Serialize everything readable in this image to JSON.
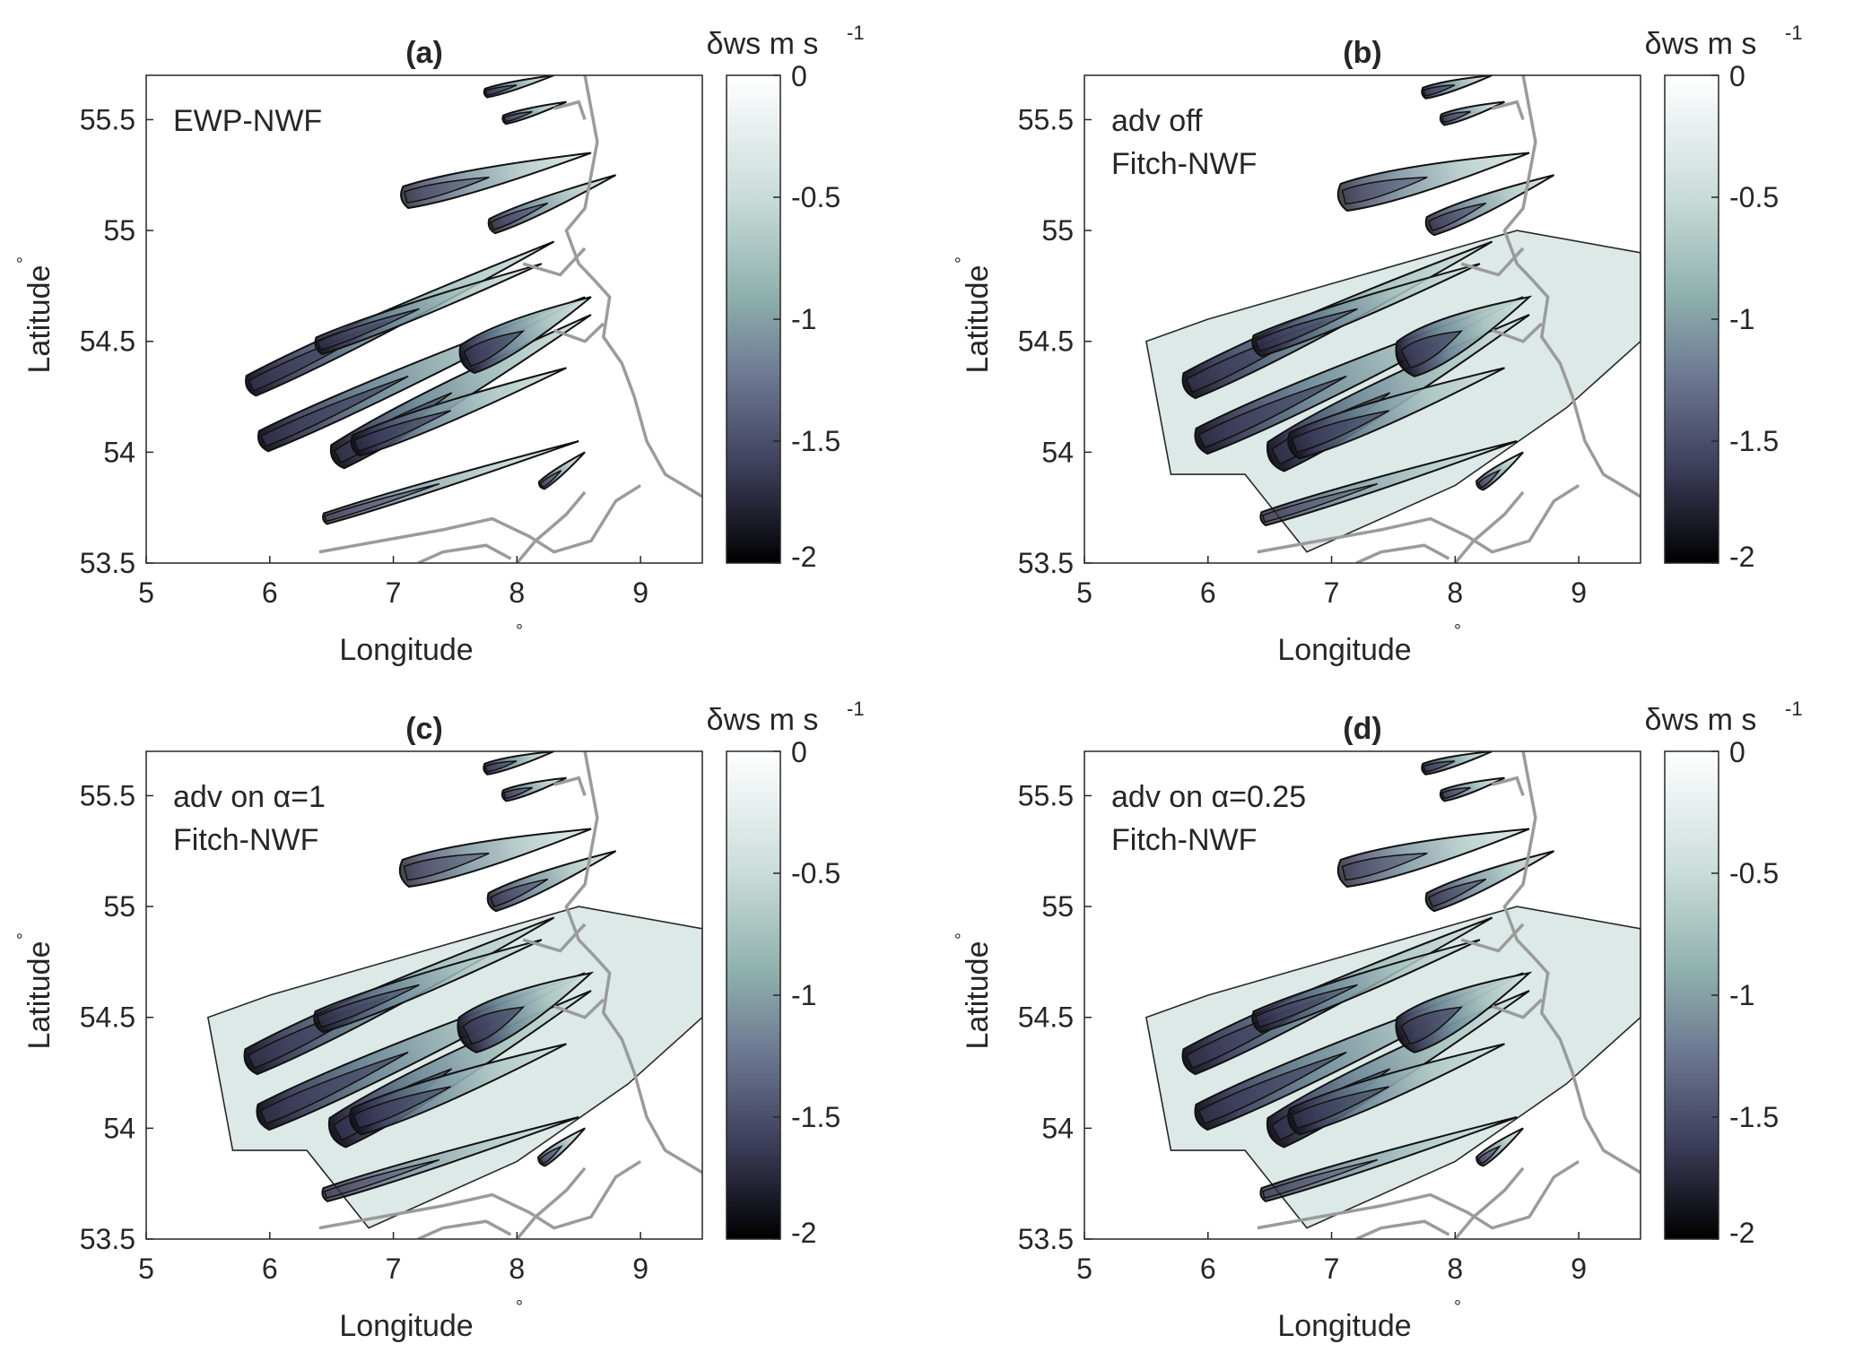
{
  "figure": {
    "xlabel": "Longitude",
    "ylabel": "Latitude",
    "degree_symbol": "°",
    "colorbar_label": "δws m s",
    "colorbar_label_exponent": "-1",
    "colorbar_ticks": [
      "0",
      "-0.5",
      "-1",
      "-1.5",
      "-2"
    ],
    "x_tick_labels": [
      "5",
      "6",
      "7",
      "8",
      "9"
    ],
    "y_tick_labels": [
      "53.5",
      "54",
      "54.5",
      "55",
      "55.5"
    ],
    "colormap": {
      "light": "#ffffff",
      "mid": "#8fb1ad",
      "dark_mid": "#4e5271",
      "dark": "#000000"
    },
    "coastline_color": "#9b9b9b"
  },
  "chart_data": [
    {
      "type": "heatmap",
      "title": "(a)",
      "annotation": [
        "EWP-NWF"
      ],
      "xlim": [
        5,
        9.5
      ],
      "ylim": [
        53.5,
        55.7
      ],
      "clim": [
        -2,
        0
      ],
      "xlabel": "Longitude",
      "ylabel": "Latitude",
      "colorbar_label": "δws m s-1"
    },
    {
      "type": "heatmap",
      "title": "(b)",
      "annotation": [
        "adv off",
        "Fitch-NWF"
      ],
      "xlim": [
        5,
        9.5
      ],
      "ylim": [
        53.5,
        55.7
      ],
      "clim": [
        -2,
        0
      ],
      "xlabel": "Longitude",
      "ylabel": "Latitude",
      "colorbar_label": "δws m s-1"
    },
    {
      "type": "heatmap",
      "title": "(c)",
      "annotation": [
        "adv on α=1",
        "Fitch-NWF"
      ],
      "xlim": [
        5,
        9.5
      ],
      "ylim": [
        53.5,
        55.7
      ],
      "clim": [
        -2,
        0
      ],
      "xlabel": "Longitude",
      "ylabel": "Latitude",
      "colorbar_label": "δws m s-1"
    },
    {
      "type": "heatmap",
      "title": "(d)",
      "annotation": [
        "adv on α=0.25",
        "Fitch-NWF"
      ],
      "xlim": [
        5,
        9.5
      ],
      "ylim": [
        53.5,
        55.7
      ],
      "clim": [
        -2,
        0
      ],
      "xlabel": "Longitude",
      "ylabel": "Latitude",
      "colorbar_label": "δws m s-1"
    }
  ]
}
